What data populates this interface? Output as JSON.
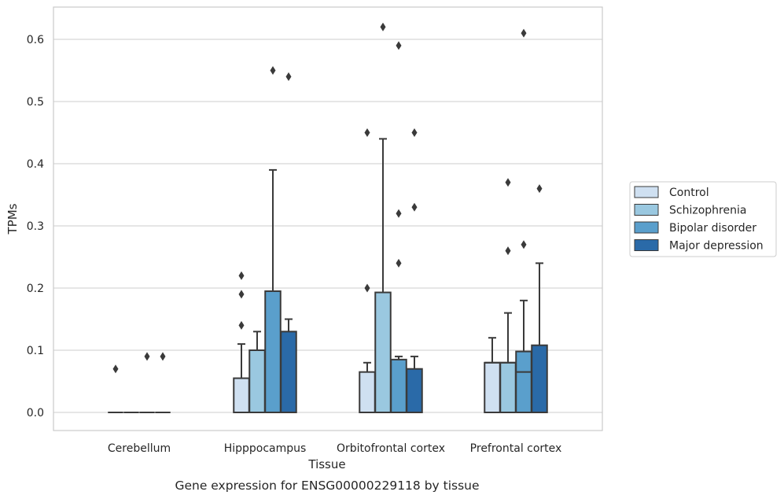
{
  "chart_data": {
    "type": "boxplot",
    "caption": "Gene expression for ENSG00000229118 by tissue",
    "xlabel": "Tissue",
    "ylabel": "TPMs",
    "ylim": [
      -0.03,
      0.65
    ],
    "yticks": [
      0.0,
      0.1,
      0.2,
      0.3,
      0.4,
      0.5,
      0.6
    ],
    "ytick_labels": [
      "0.0",
      "0.1",
      "0.2",
      "0.3",
      "0.4",
      "0.5",
      "0.6"
    ],
    "grid": "horizontal",
    "legend_position": "right",
    "categories": [
      "Cerebellum",
      "Hipppocampus",
      "Orbitofrontal cortex",
      "Prefrontal cortex"
    ],
    "series": [
      {
        "name": "Control",
        "color": "#cfe0f1",
        "boxes": [
          {
            "low": 0.0,
            "q1": 0.0,
            "median": 0.0,
            "q3": 0.0,
            "high": 0.0,
            "outliers": [
              0.07
            ]
          },
          {
            "low": 0.0,
            "q1": 0.0,
            "median": 0.0,
            "q3": 0.055,
            "high": 0.11,
            "outliers": [
              0.14,
              0.19,
              0.22
            ]
          },
          {
            "low": 0.0,
            "q1": 0.0,
            "median": 0.0,
            "q3": 0.065,
            "high": 0.08,
            "outliers": [
              0.2,
              0.45
            ]
          },
          {
            "low": 0.0,
            "q1": 0.0,
            "median": 0.08,
            "q3": 0.08,
            "high": 0.12,
            "outliers": []
          }
        ]
      },
      {
        "name": "Schizophrenia",
        "color": "#9ac8e0",
        "boxes": [
          {
            "low": 0.0,
            "q1": 0.0,
            "median": 0.0,
            "q3": 0.0,
            "high": 0.0,
            "outliers": []
          },
          {
            "low": 0.0,
            "q1": 0.0,
            "median": 0.0,
            "q3": 0.1,
            "high": 0.13,
            "outliers": []
          },
          {
            "low": 0.0,
            "q1": 0.0,
            "median": 0.0,
            "q3": 0.193,
            "high": 0.44,
            "outliers": [
              0.62
            ]
          },
          {
            "low": 0.0,
            "q1": 0.0,
            "median": 0.08,
            "q3": 0.08,
            "high": 0.16,
            "outliers": [
              0.26,
              0.37
            ]
          }
        ]
      },
      {
        "name": "Bipolar disorder",
        "color": "#5a9fcc",
        "boxes": [
          {
            "low": 0.0,
            "q1": 0.0,
            "median": 0.0,
            "q3": 0.0,
            "high": 0.0,
            "outliers": [
              0.09
            ]
          },
          {
            "low": 0.0,
            "q1": 0.0,
            "median": 0.0,
            "q3": 0.195,
            "high": 0.39,
            "outliers": [
              0.55
            ]
          },
          {
            "low": 0.0,
            "q1": 0.0,
            "median": 0.0,
            "q3": 0.085,
            "high": 0.09,
            "outliers": [
              0.24,
              0.32,
              0.59
            ]
          },
          {
            "low": 0.0,
            "q1": 0.0,
            "median": 0.065,
            "q3": 0.098,
            "high": 0.18,
            "outliers": [
              0.27,
              0.61
            ]
          }
        ]
      },
      {
        "name": "Major depression",
        "color": "#2a6aa8",
        "boxes": [
          {
            "low": 0.0,
            "q1": 0.0,
            "median": 0.0,
            "q3": 0.0,
            "high": 0.0,
            "outliers": [
              0.09
            ]
          },
          {
            "low": 0.0,
            "q1": 0.0,
            "median": 0.0,
            "q3": 0.13,
            "high": 0.15,
            "outliers": [
              0.54
            ]
          },
          {
            "low": 0.0,
            "q1": 0.0,
            "median": 0.0,
            "q3": 0.07,
            "high": 0.09,
            "outliers": [
              0.33,
              0.45
            ]
          },
          {
            "low": 0.0,
            "q1": 0.0,
            "median": 0.0,
            "q3": 0.108,
            "high": 0.24,
            "outliers": [
              0.36
            ]
          }
        ]
      }
    ]
  }
}
